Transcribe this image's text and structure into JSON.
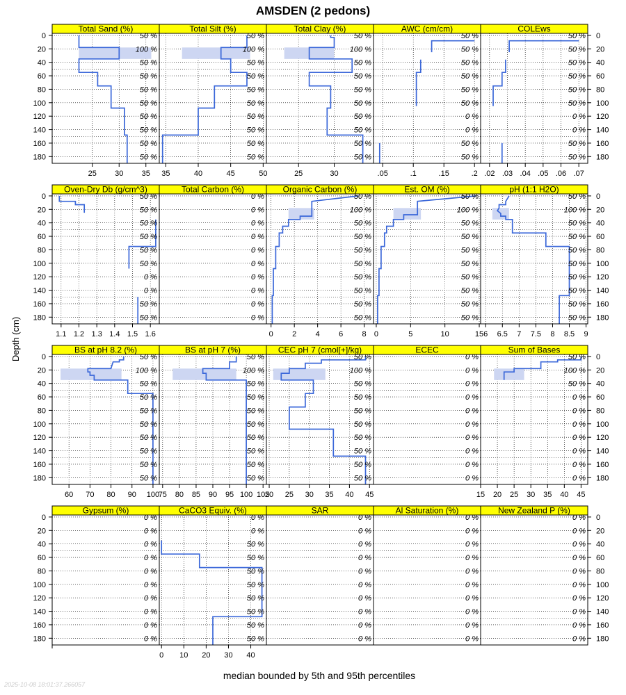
{
  "chart_data": {
    "type": "line",
    "title": "AMSDEN (2 pedons)",
    "xlabel": "median bounded by 5th and 95th percentiles",
    "ylabel": "Depth (cm)",
    "timestamp": "2025-10-08 18:01:37.266057",
    "depth_ticks": [
      0,
      20,
      40,
      60,
      80,
      100,
      120,
      140,
      160,
      180
    ],
    "depth_lim": [
      190,
      -3
    ],
    "pct_labels": {
      "main": [
        "50 %",
        "100 %",
        "50 %",
        "50 %",
        "50 %",
        "50 %",
        "50 %",
        "50 %",
        "50 %",
        "50 %"
      ],
      "awc": [
        "50 %",
        "50 %",
        "50 %",
        "50 %",
        "50 %",
        "50 %",
        "0 %",
        "0 %",
        "50 %",
        "50 %"
      ],
      "dense": [
        "50 %",
        "100 %",
        "50 %",
        "50 %",
        "50 %",
        "50 %",
        "50 %",
        "50 %",
        "50 %",
        "50 %"
      ],
      "db": [
        "50 %",
        "50 %",
        "50 %",
        "50 %",
        "50 %",
        "50 %",
        "0 %",
        "0 %",
        "50 %",
        "50 %"
      ],
      "carb": [
        "0 %",
        "0 %",
        "50 %",
        "50 %",
        "50 %",
        "50 %",
        "50 %",
        "50 %",
        "50 %",
        "50 %"
      ],
      "zero": [
        "0 %",
        "0 %",
        "0 %",
        "0 %",
        "0 %",
        "0 %",
        "0 %",
        "0 %",
        "0 %",
        "0 %"
      ],
      "top3": [
        "50 %",
        "100 %",
        "50 %",
        "0 %",
        "0 %",
        "0 %",
        "0 %",
        "0 %",
        "0 %",
        "0 %"
      ]
    },
    "panels": [
      {
        "label": "Total Sand (%)",
        "xlim": [
          17.5,
          37.5
        ],
        "ticks": [
          25,
          30,
          35
        ],
        "pct": "main",
        "median": [
          [
            22.5,
            0
          ],
          [
            22.5,
            18
          ],
          [
            30,
            18
          ],
          [
            30,
            35
          ],
          [
            22.5,
            35
          ],
          [
            22.5,
            55
          ],
          [
            26,
            55
          ],
          [
            26,
            75
          ],
          [
            28.5,
            75
          ],
          [
            28.5,
            108
          ],
          [
            31,
            108
          ],
          [
            31,
            148
          ],
          [
            31.5,
            148
          ],
          [
            31.5,
            190
          ]
        ],
        "band": [
          [
            22.5,
            18,
            36,
            35
          ]
        ]
      },
      {
        "label": "Total Silt (%)",
        "xlim": [
          34,
          50.5
        ],
        "ticks": [
          35,
          40,
          45,
          50
        ],
        "pct": "main",
        "median": [
          [
            47.5,
            0
          ],
          [
            47.5,
            18
          ],
          [
            43.5,
            18
          ],
          [
            43.5,
            35
          ],
          [
            45,
            35
          ],
          [
            45,
            55
          ],
          [
            47.5,
            55
          ],
          [
            47.5,
            75
          ],
          [
            42.5,
            75
          ],
          [
            42.5,
            108
          ],
          [
            40,
            108
          ],
          [
            40,
            148
          ],
          [
            34.5,
            148
          ],
          [
            34.5,
            190
          ]
        ],
        "band": [
          [
            37.5,
            18,
            48,
            35
          ]
        ]
      },
      {
        "label": "Total Clay (%)",
        "xlim": [
          20.5,
          35.5
        ],
        "ticks": [
          25,
          30
        ],
        "pct": "main",
        "median": [
          [
            29.5,
            0
          ],
          [
            29.5,
            3
          ],
          [
            30,
            3
          ],
          [
            30,
            18
          ],
          [
            26.5,
            18
          ],
          [
            26.5,
            35
          ],
          [
            32.5,
            35
          ],
          [
            32.5,
            55
          ],
          [
            26.5,
            55
          ],
          [
            26.5,
            75
          ],
          [
            29.5,
            75
          ],
          [
            29.5,
            108
          ],
          [
            29,
            108
          ],
          [
            29,
            148
          ],
          [
            34,
            148
          ],
          [
            34,
            190
          ]
        ],
        "band": [
          [
            23,
            18,
            30,
            35
          ]
        ]
      },
      {
        "label": "AWC (cm/cm)",
        "xlim": [
          0.035,
          0.21
        ],
        "ticks": [
          0.05,
          0.1,
          0.15,
          0.2
        ],
        "pct": "awc",
        "median": [
          [
            0.2,
            8
          ],
          [
            0.13,
            8
          ],
          [
            0.13,
            25
          ]
        ],
        "segments": [
          [
            [
              0.112,
              36
            ],
            [
              0.112,
              55
            ],
            [
              0.105,
              55
            ],
            [
              0.105,
              105
            ]
          ],
          [
            [
              0.045,
              160
            ],
            [
              0.045,
              190
            ]
          ]
        ]
      },
      {
        "label": "COLEws",
        "xlim": [
          0.015,
          0.075
        ],
        "ticks": [
          0.02,
          0.03,
          0.04,
          0.05,
          0.06,
          0.07
        ],
        "pct": "awc",
        "median": [
          [
            0.07,
            8
          ],
          [
            0.031,
            8
          ],
          [
            0.031,
            25
          ]
        ],
        "segments": [
          [
            [
              0.029,
              36
            ],
            [
              0.029,
              55
            ],
            [
              0.027,
              55
            ],
            [
              0.027,
              75
            ],
            [
              0.022,
              75
            ],
            [
              0.022,
              105
            ]
          ],
          [
            [
              0.027,
              160
            ],
            [
              0.027,
              190
            ]
          ]
        ]
      },
      {
        "label": "Oven-Dry Db (g/cm^3)",
        "xlim": [
          1.05,
          1.65
        ],
        "ticks": [
          1.1,
          1.2,
          1.3,
          1.4,
          1.5,
          1.6
        ],
        "pct": "db",
        "median": [
          [
            1.09,
            0
          ],
          [
            1.09,
            8
          ],
          [
            1.18,
            8
          ],
          [
            1.18,
            13
          ],
          [
            1.23,
            13
          ],
          [
            1.23,
            25
          ]
        ],
        "segments": [
          [
            [
              1.63,
              35
            ],
            [
              1.63,
              75
            ],
            [
              1.48,
              75
            ],
            [
              1.48,
              108
            ]
          ],
          [
            [
              1.53,
              150
            ],
            [
              1.53,
              190
            ]
          ]
        ]
      },
      {
        "label": "Total Carbon (%)",
        "xlim": [
          0,
          1
        ],
        "ticks": [],
        "pct": "zero",
        "median": []
      },
      {
        "label": "Organic Carbon (%)",
        "xlim": [
          -0.4,
          8.8
        ],
        "ticks": [
          0,
          2,
          4,
          6,
          8
        ],
        "pct": "dense",
        "median": [
          [
            7.5,
            0
          ],
          [
            3.5,
            8
          ],
          [
            3.5,
            18
          ],
          [
            3.5,
            30
          ],
          [
            2.5,
            30
          ],
          [
            2.5,
            35
          ],
          [
            1.5,
            35
          ],
          [
            1.5,
            45
          ],
          [
            1.0,
            45
          ],
          [
            1.0,
            55
          ],
          [
            0.7,
            55
          ],
          [
            0.7,
            75
          ],
          [
            0.4,
            75
          ],
          [
            0.4,
            108
          ],
          [
            0.2,
            108
          ],
          [
            0.2,
            148
          ],
          [
            0.1,
            148
          ],
          [
            0.1,
            190
          ]
        ],
        "band": [
          [
            1.5,
            18,
            3.7,
            35
          ]
        ]
      },
      {
        "label": "Est. OM (%)",
        "xlim": [
          -0.4,
          15.2
        ],
        "ticks": [
          0,
          5,
          10,
          15
        ],
        "pct": "dense",
        "median": [
          [
            14.5,
            0
          ],
          [
            6,
            8
          ],
          [
            6,
            18
          ],
          [
            6,
            28
          ],
          [
            4,
            28
          ],
          [
            4,
            35
          ],
          [
            2.5,
            35
          ],
          [
            2.5,
            45
          ],
          [
            1.5,
            45
          ],
          [
            1.5,
            55
          ],
          [
            1.2,
            55
          ],
          [
            1.2,
            75
          ],
          [
            0.7,
            75
          ],
          [
            0.7,
            108
          ],
          [
            0.4,
            108
          ],
          [
            0.4,
            148
          ],
          [
            0.2,
            148
          ],
          [
            0.2,
            190
          ]
        ],
        "band": [
          [
            2.5,
            18,
            6.5,
            35
          ]
        ]
      },
      {
        "label": "pH (1:1 H2O)",
        "xlim": [
          5.85,
          9.05
        ],
        "ticks": [
          6.0,
          6.5,
          7.0,
          7.5,
          8.0,
          8.5,
          9.0
        ],
        "pct": "dense",
        "median": [
          [
            6.7,
            0
          ],
          [
            6.6,
            8
          ],
          [
            6.6,
            13
          ],
          [
            6.4,
            13
          ],
          [
            6.4,
            18
          ],
          [
            6.35,
            22
          ],
          [
            6.45,
            26
          ],
          [
            6.45,
            30
          ],
          [
            6.6,
            30
          ],
          [
            6.6,
            35
          ],
          [
            6.8,
            35
          ],
          [
            6.8,
            55
          ],
          [
            7.8,
            55
          ],
          [
            7.8,
            75
          ],
          [
            8.5,
            75
          ],
          [
            8.5,
            148
          ],
          [
            8.2,
            148
          ],
          [
            8.2,
            190
          ]
        ],
        "band": [
          [
            6.2,
            18,
            6.7,
            35
          ]
        ]
      },
      {
        "label": "BS at pH 8.2 (%)",
        "xlim": [
          52,
          103
        ],
        "ticks": [
          60,
          70,
          80,
          90,
          100
        ],
        "pct": "dense",
        "median": [
          [
            86,
            0
          ],
          [
            86,
            5
          ],
          [
            84,
            5
          ],
          [
            84,
            8
          ],
          [
            81,
            8
          ],
          [
            80,
            18
          ],
          [
            69,
            18
          ],
          [
            69,
            23
          ],
          [
            70,
            23
          ],
          [
            70,
            28
          ],
          [
            72,
            28
          ],
          [
            72,
            35
          ],
          [
            88,
            35
          ],
          [
            88,
            55
          ],
          [
            100,
            55
          ],
          [
            100,
            190
          ]
        ],
        "band": [
          [
            56,
            18,
            85,
            35
          ]
        ]
      },
      {
        "label": "BS at pH 7 (%)",
        "xlim": [
          74,
          106
        ],
        "ticks": [
          75,
          80,
          85,
          90,
          95,
          100,
          105
        ],
        "pct": "dense",
        "median": [
          [
            97,
            0
          ],
          [
            97,
            8
          ],
          [
            95,
            8
          ],
          [
            95,
            18
          ],
          [
            87,
            18
          ],
          [
            87,
            25
          ],
          [
            88,
            25
          ],
          [
            88,
            35
          ],
          [
            100,
            35
          ],
          [
            100,
            190
          ]
        ],
        "band": [
          [
            78,
            18,
            97,
            35
          ]
        ]
      },
      {
        "label": "CEC pH 7 (cmol[+]/kg)",
        "xlim": [
          19.3,
          46
        ],
        "ticks": [
          20,
          25,
          30,
          35,
          40,
          45
        ],
        "pct": "dense",
        "median": [
          [
            44,
            0
          ],
          [
            44,
            5
          ],
          [
            33,
            5
          ],
          [
            33,
            10
          ],
          [
            29,
            10
          ],
          [
            29,
            18
          ],
          [
            25,
            18
          ],
          [
            25,
            25
          ],
          [
            23,
            25
          ],
          [
            23,
            35
          ],
          [
            31,
            35
          ],
          [
            31,
            55
          ],
          [
            29,
            55
          ],
          [
            29,
            75
          ],
          [
            25,
            75
          ],
          [
            25,
            108
          ],
          [
            36,
            108
          ],
          [
            36,
            148
          ],
          [
            44,
            148
          ],
          [
            44,
            190
          ]
        ],
        "band": [
          [
            21,
            18,
            34,
            35
          ]
        ]
      },
      {
        "label": "ECEC",
        "xlim": [
          0,
          1
        ],
        "ticks": [],
        "pct": "zero",
        "median": []
      },
      {
        "label": "Sum of Bases",
        "xlim": [
          15,
          47
        ],
        "ticks": [
          15,
          20,
          25,
          30,
          35,
          40,
          45
        ],
        "pct": "top3",
        "median": [
          [
            45,
            0
          ],
          [
            45,
            5
          ],
          [
            38,
            5
          ],
          [
            38,
            8
          ],
          [
            33,
            8
          ],
          [
            33,
            18
          ],
          [
            25,
            18
          ],
          [
            25,
            23
          ],
          [
            22,
            23
          ],
          [
            22,
            35
          ]
        ],
        "band": [
          [
            19,
            18,
            28,
            35
          ]
        ]
      },
      {
        "label": "Gypsum (%)",
        "xlim": [
          0,
          1
        ],
        "ticks": [],
        "pct": "zero",
        "median": []
      },
      {
        "label": "CaCO3 Equiv. (%)",
        "xlim": [
          -1,
          47
        ],
        "ticks": [
          0,
          10,
          20,
          30,
          40
        ],
        "pct": "carb",
        "median": [
          [
            0,
            35
          ],
          [
            0,
            55
          ],
          [
            17,
            55
          ],
          [
            17,
            75
          ],
          [
            45,
            75
          ],
          [
            45,
            148
          ],
          [
            23,
            148
          ],
          [
            23,
            190
          ]
        ]
      },
      {
        "label": "SAR",
        "xlim": [
          0,
          1
        ],
        "ticks": [],
        "pct": "zero",
        "median": []
      },
      {
        "label": "Al Saturation (%)",
        "xlim": [
          0,
          1
        ],
        "ticks": [],
        "pct": "zero",
        "median": []
      },
      {
        "label": "New Zealand P (%)",
        "xlim": [
          0,
          1
        ],
        "ticks": [],
        "pct": "zero",
        "median": []
      }
    ]
  }
}
